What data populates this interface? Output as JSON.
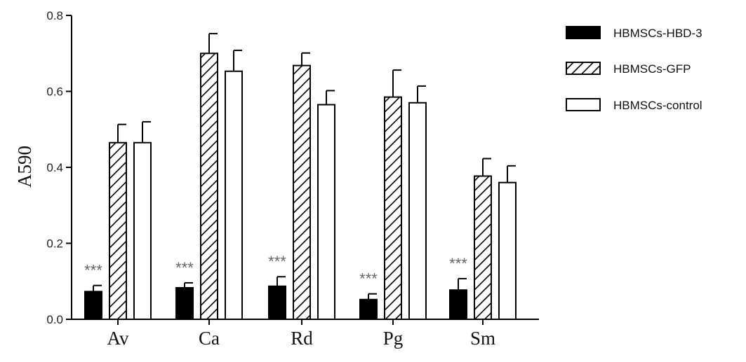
{
  "chart_data": {
    "type": "bar",
    "ylabel": "A590",
    "xlabel": "",
    "ylim": [
      0,
      0.8
    ],
    "yticks": [
      "0.0",
      "0.2",
      "0.4",
      "0.6",
      "0.8"
    ],
    "categories": [
      "Av",
      "Ca",
      "Rd",
      "Pg",
      "Sm"
    ],
    "series": [
      {
        "name": "HBMSCs-HBD-3",
        "fill": "black",
        "values": [
          0.073,
          0.083,
          0.087,
          0.052,
          0.077
        ],
        "errors": [
          0.016,
          0.013,
          0.025,
          0.015,
          0.03
        ]
      },
      {
        "name": "HBMSCs-GFP",
        "fill": "hatch",
        "values": [
          0.465,
          0.7,
          0.668,
          0.585,
          0.377
        ],
        "errors": [
          0.048,
          0.052,
          0.033,
          0.071,
          0.046
        ]
      },
      {
        "name": "HBMSCs-control",
        "fill": "white",
        "values": [
          0.465,
          0.653,
          0.565,
          0.57,
          0.36
        ],
        "errors": [
          0.055,
          0.055,
          0.037,
          0.044,
          0.044
        ]
      }
    ],
    "annotations": [
      "***",
      "***",
      "***",
      "***",
      "***"
    ],
    "legend_position": "right",
    "grid": false
  }
}
